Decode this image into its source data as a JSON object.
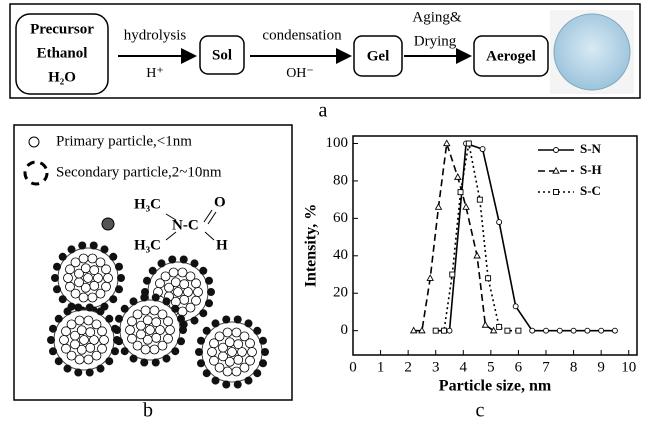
{
  "flow": {
    "precursor": [
      "Precursor",
      "Ethanol",
      "H₂O"
    ],
    "step1": {
      "above": "hydrolysis",
      "below": "H⁺"
    },
    "sol": "Sol",
    "step2": {
      "above": "condensation",
      "below": "OH⁻"
    },
    "gel": "Gel",
    "step3": {
      "above": [
        "Aging&",
        "Drying"
      ]
    },
    "aerogel": "Aerogel",
    "label": "a"
  },
  "particles": {
    "primary": "Primary particle,<1nm",
    "secondary": "Secondary particle,2~10nm",
    "formula": [
      "H₃C",
      "N-C",
      "O",
      "H₃C",
      "H"
    ],
    "label": "b"
  },
  "chart_data": {
    "type": "line",
    "panel_label": "c",
    "x_label": "Particle size, nm",
    "y_label": "Intensity, %",
    "xlim": [
      0,
      10.3
    ],
    "ylim": [
      -13,
      104
    ],
    "xticks": [
      0,
      1,
      2,
      3,
      4,
      5,
      6,
      7,
      8,
      9,
      10
    ],
    "yticks": [
      0,
      20,
      40,
      60,
      80,
      100
    ],
    "legend": "upper right",
    "series": [
      {
        "name": "S-N",
        "color": "#000000",
        "dash": "solid",
        "marker": "circle",
        "x": [
          3.0,
          3.5,
          4.1,
          4.7,
          5.3,
          5.9,
          6.5,
          7.0,
          7.5,
          8.0,
          8.5,
          9.0,
          9.5
        ],
        "values": [
          0,
          0,
          100,
          97,
          58,
          13,
          0,
          0,
          0,
          0,
          0,
          0,
          0
        ]
      },
      {
        "name": "S-H",
        "color": "#000000",
        "dash": "dashed",
        "marker": "triangle",
        "x": [
          2.2,
          2.5,
          2.8,
          3.1,
          3.4,
          3.8,
          4.1,
          4.5,
          4.8,
          5.1
        ],
        "values": [
          0,
          0,
          28,
          66,
          100,
          82,
          66,
          40,
          3,
          0
        ]
      },
      {
        "name": "S-C",
        "color": "#000000",
        "dash": "dotted",
        "marker": "square",
        "x": [
          3.0,
          3.3,
          3.6,
          3.9,
          4.2,
          4.6,
          4.9,
          5.3,
          5.6,
          6.0
        ],
        "values": [
          0,
          0,
          30,
          74,
          100,
          70,
          28,
          2,
          0,
          0
        ]
      }
    ]
  }
}
